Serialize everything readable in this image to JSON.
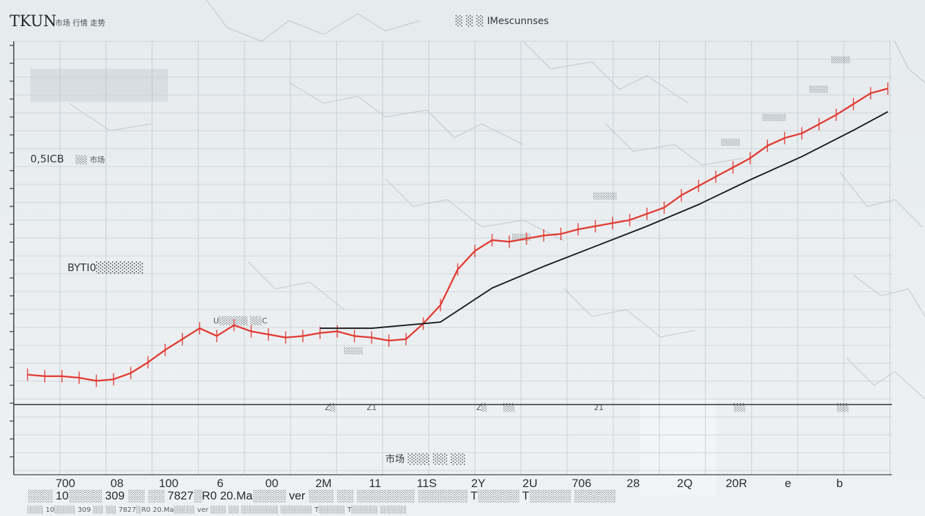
{
  "header": {
    "logo_text": "TKUN",
    "subtitle_left": "市场 行情 走势",
    "subtitle_center": "░ ░ ░ IMescunnses"
  },
  "annotations": {
    "y_label_top": "0,5ICB",
    "y_label_top_sub": "░░ 市场",
    "mid_label": "BYTI0░░░░░░",
    "center_note": "U░░░░░ ░░C",
    "bottom_mid": "市场 ░░░ ░░ ░░",
    "peak_labels": [
      "░░░░",
      "░░░░",
      "░░░░░",
      "░░░░",
      "░░░░░",
      "░░░░",
      "░░░░"
    ]
  },
  "chart_data": {
    "type": "line",
    "title": "",
    "xlabel": "",
    "ylabel": "",
    "x_tick_labels": [
      "700",
      "08",
      "100",
      "6",
      "00",
      "2M",
      "11",
      "11S",
      "2Y",
      "2U",
      "706",
      "28",
      "2Q",
      "20R",
      "e",
      "b"
    ],
    "lower_tick_labels": [
      "Z░",
      "Z1",
      "Z░",
      "░░",
      "21",
      "░░",
      "░░"
    ],
    "footer_text": "░░░ 10░░░░ 309 ░░ ░░ 7827░R0 20.Ma░░░░ ver ░░░ ░░ ░░░░░░░ ░░░░░░ T░░░░░ T░░░░░ ░░░░░",
    "series": [
      {
        "color": "#e23b32",
        "x": [
          0,
          10,
          20,
          30,
          40,
          50,
          60,
          70,
          80,
          90,
          100,
          110,
          120,
          130,
          140,
          150,
          160,
          170,
          180,
          190,
          200,
          210,
          220,
          230,
          240,
          250,
          260,
          270,
          280,
          290,
          300,
          310,
          320,
          330,
          340,
          350,
          360,
          370,
          380,
          390,
          400,
          410,
          420,
          430,
          440,
          450,
          460,
          470,
          480,
          490,
          500
        ],
        "values": [
          30,
          29,
          29,
          28,
          26,
          27,
          31,
          38,
          46,
          53,
          60,
          55,
          62,
          58,
          56,
          54,
          55,
          57,
          58,
          55,
          54,
          52,
          53,
          63,
          75,
          98,
          110,
          117,
          116,
          118,
          120,
          121,
          124,
          126,
          128,
          130,
          134,
          138,
          146,
          152,
          158,
          164,
          170,
          178,
          183,
          186,
          192,
          198,
          205,
          212,
          215
        ]
      },
      {
        "color": "#1d1d1d",
        "x": [
          170,
          200,
          240,
          270,
          300,
          330,
          360,
          390,
          420,
          450,
          480,
          500
        ],
        "values": [
          60,
          60,
          64,
          86,
          100,
          113,
          126,
          140,
          156,
          171,
          188,
          200
        ]
      }
    ],
    "xlim": [
      0,
      500
    ],
    "ylim": [
      0,
      230
    ],
    "grid": true
  }
}
